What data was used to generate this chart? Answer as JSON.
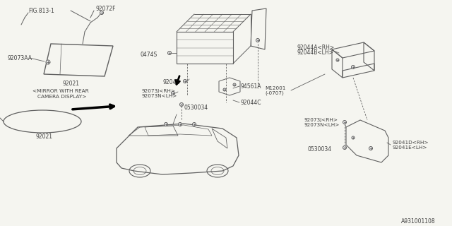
{
  "bg_color": "#f5f5f0",
  "line_color": "#606060",
  "text_color": "#404040",
  "fig_id": "A931001108",
  "font_size": 5.5,
  "labels": {
    "fig_ref": "FIG.813-1",
    "p92072F": "92072F",
    "p92073AA": "92073AA",
    "p92021_top": "92021",
    "mirror_caption1": "<MIRROR WITH REAR",
    "mirror_caption2": "CAMERA DISPLAY>",
    "p92021_bot": "92021",
    "p0474S": "0474S",
    "p92041": "92041",
    "p92073J_top": "92073J<RH>",
    "p92073N_top": "92073N<LH>",
    "p94561A": "94561A",
    "p92044A": "92044A<RH>",
    "p92044B": "92044B<LH>",
    "p92044C": "92044C",
    "p0530034_mid": "0530034",
    "pM12001": "M12001",
    "pM12001b": "(-0707)",
    "p92073J_bot": "92073J<RH>",
    "p92073N_bot": "92073N<LH>",
    "p92041D": "92041D<RH>",
    "p92041E": "92041E<LH>",
    "p0530034_bot": "0530034"
  },
  "coords": {
    "figsize": [
      6.4,
      3.2
    ],
    "dpi": 100,
    "xlim": [
      0,
      640
    ],
    "ylim": [
      0,
      320
    ]
  }
}
